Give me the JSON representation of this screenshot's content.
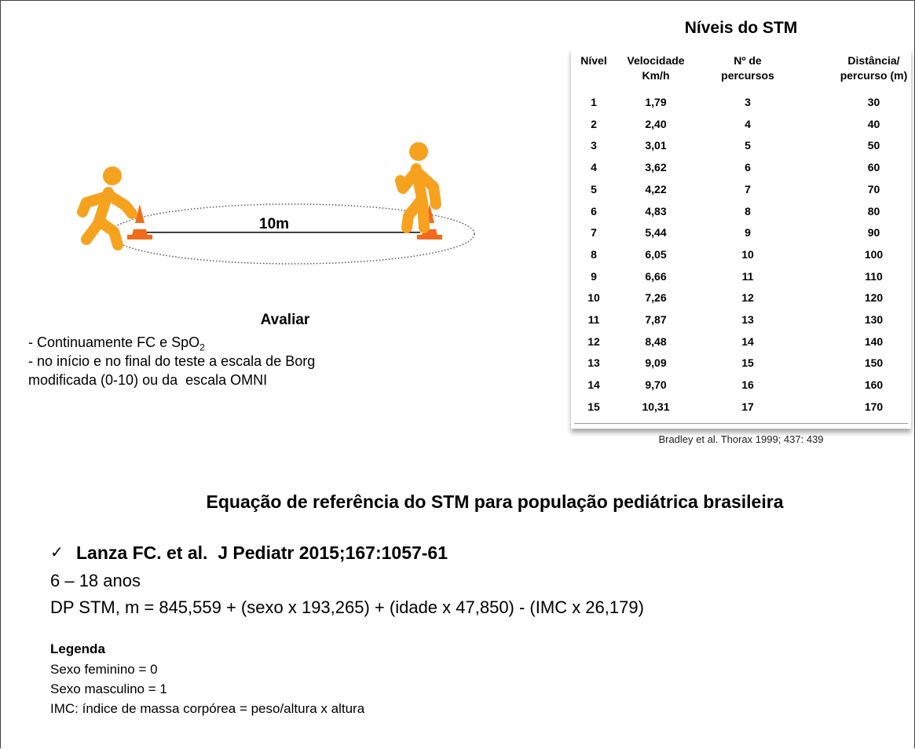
{
  "illustration": {
    "distance_label": "10m"
  },
  "evaluate": {
    "title": "Avaliar",
    "lines": [
      {
        "text": "- Continuamente FC e SpO",
        "sub": "2"
      },
      {
        "text": "- no início e no final do teste a escala de Borg"
      },
      {
        "text": "modificada (0-10) ou da  escala OMNI"
      }
    ]
  },
  "table": {
    "title": "Níveis do STM",
    "header": [
      [
        "Nível"
      ],
      [
        "Velocidade",
        "Km/h"
      ],
      [
        "Nº de",
        "percursos"
      ],
      [
        "Distância/",
        "percurso (m)"
      ]
    ],
    "rows": [
      [
        "1",
        "1,79",
        "3",
        "30"
      ],
      [
        "2",
        "2,40",
        "4",
        "40"
      ],
      [
        "3",
        "3,01",
        "5",
        "50"
      ],
      [
        "4",
        "3,62",
        "6",
        "60"
      ],
      [
        "5",
        "4,22",
        "7",
        "70"
      ],
      [
        "6",
        "4,83",
        "8",
        "80"
      ],
      [
        "7",
        "5,44",
        "9",
        "90"
      ],
      [
        "8",
        "6,05",
        "10",
        "100"
      ],
      [
        "9",
        "6,66",
        "11",
        "110"
      ],
      [
        "10",
        "7,26",
        "12",
        "120"
      ],
      [
        "11",
        "7,87",
        "13",
        "130"
      ],
      [
        "12",
        "8,48",
        "14",
        "140"
      ],
      [
        "13",
        "9,09",
        "15",
        "150"
      ],
      [
        "14",
        "9,70",
        "16",
        "160"
      ],
      [
        "15",
        "10,31",
        "17",
        "170"
      ]
    ],
    "source": "Bradley et al. Thorax 1999; 437: 439"
  },
  "reference": {
    "title": "Equação de referência do STM para população pediátrica brasileira",
    "bullet": "✓",
    "citation": "Lanza FC. et al.  J Pediatr 2015;167:1057-61",
    "age": "6 – 18 anos",
    "equation": "DP STM, m = 845,559 + (sexo x 193,265) + (idade x 47,850) - (IMC x 26,179)"
  },
  "legend": {
    "title": "Legenda",
    "lines": [
      "Sexo feminino = 0",
      "Sexo masculino = 1",
      "IMC: índice de massa corpórea = peso/altura x altura"
    ]
  }
}
